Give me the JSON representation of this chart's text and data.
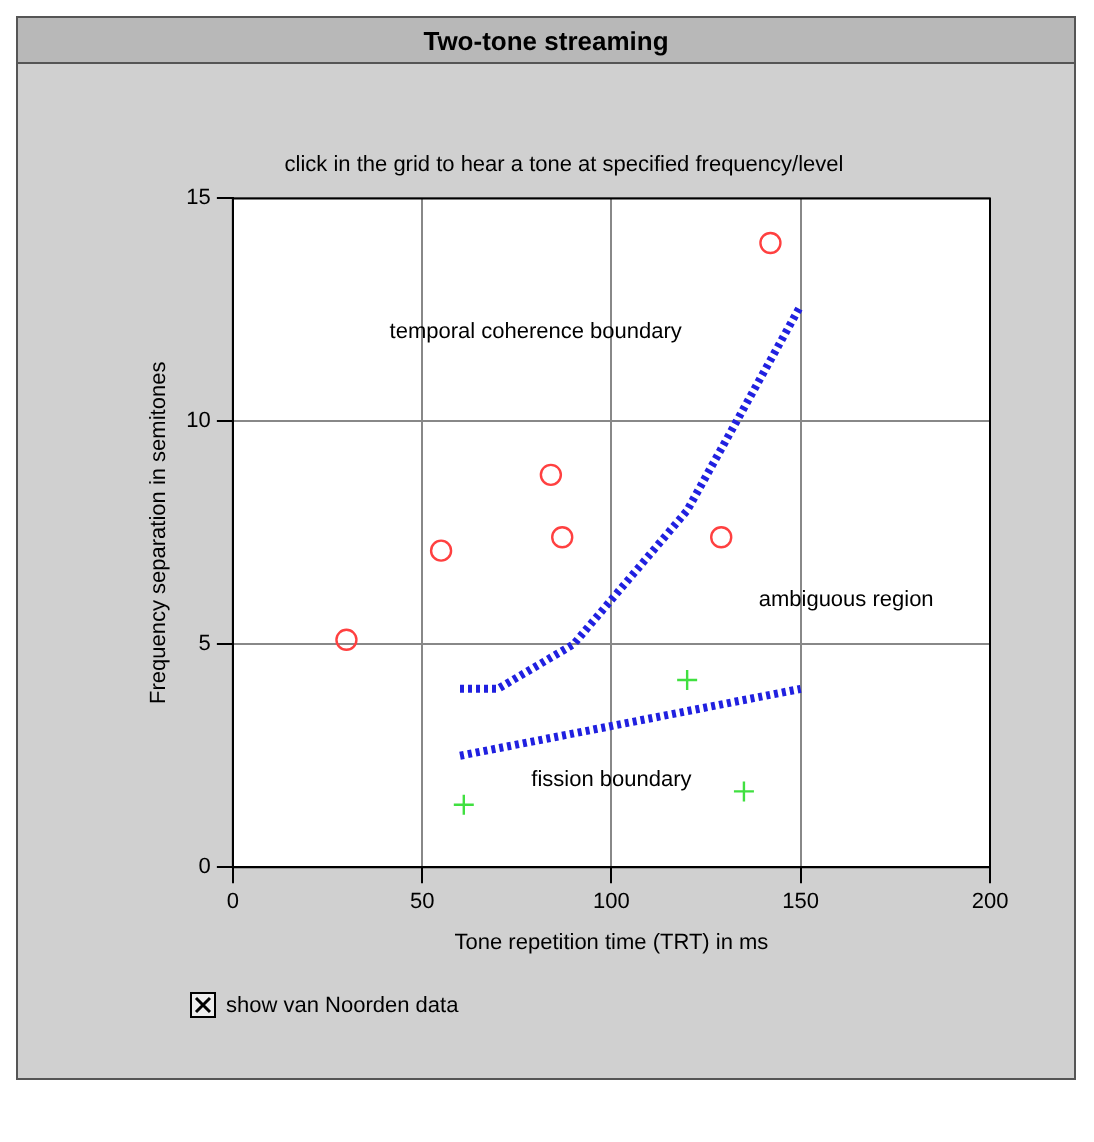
{
  "chart_data": {
    "type": "scatter",
    "title": "Two-tone streaming",
    "subtitle": "click in the grid to hear a tone at specified frequency/level",
    "xlabel": "Tone repetition time (TRT) in ms",
    "ylabel": "Frequency separation in semitones",
    "series": [
      {
        "marker": "circle",
        "color": "#ff4040",
        "x": [
          30,
          55,
          84,
          87,
          129,
          142
        ],
        "values": [
          5.1,
          7.1,
          8.8,
          7.4,
          7.4,
          14.0
        ]
      },
      {
        "marker": "cross",
        "color": "#40e040",
        "x": [
          61,
          120,
          135
        ],
        "values": [
          1.4,
          4.2,
          1.7
        ]
      },
      {
        "type": "line",
        "line_style": "dotted",
        "color": "#2020e0",
        "x": [
          60,
          70,
          90,
          120,
          150
        ],
        "values": [
          4,
          4,
          5,
          8,
          12.6
        ]
      },
      {
        "type": "line",
        "line_style": "dotted",
        "color": "#2020e0",
        "x": [
          60,
          150
        ],
        "values": [
          2.5,
          4
        ]
      }
    ],
    "xlim": [
      0,
      200
    ],
    "xticks": [
      0,
      50,
      100,
      150,
      200
    ],
    "ylim": [
      0,
      15
    ],
    "yticks": [
      0,
      5,
      10,
      15
    ],
    "grid": true,
    "legend": false,
    "annotations": [
      "temporal coherence boundary",
      "ambiguous region",
      "fission boundary",
      "show van Noorden data"
    ]
  }
}
